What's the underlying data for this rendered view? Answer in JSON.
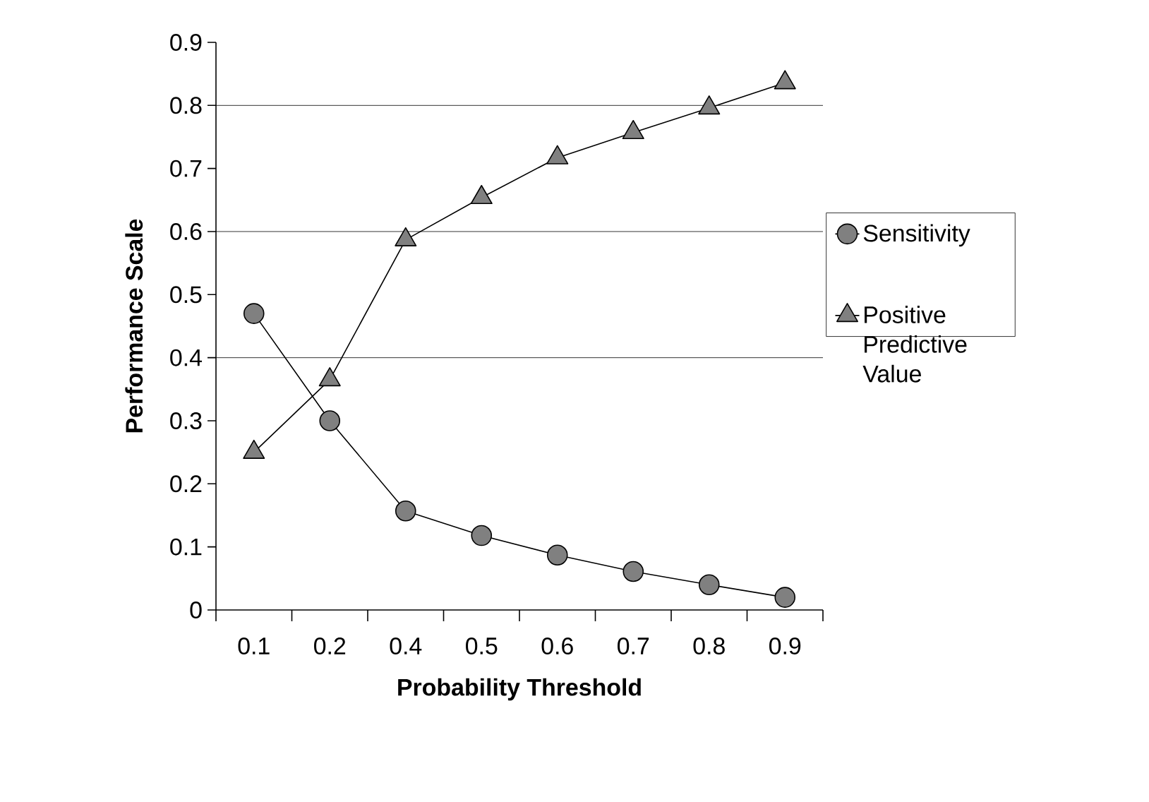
{
  "chart_data": {
    "type": "line",
    "xlabel": "Probability Threshold",
    "ylabel": "Performance Scale",
    "categories": [
      "0.1",
      "0.2",
      "0.4",
      "0.5",
      "0.6",
      "0.7",
      "0.8",
      "0.9"
    ],
    "series": [
      {
        "name": "Sensitivity",
        "color": "#808080",
        "marker": "circle",
        "values": [
          0.47,
          0.3,
          0.157,
          0.118,
          0.087,
          0.061,
          0.04,
          0.02
        ]
      },
      {
        "name": "Positive Predictive Value",
        "color": "#808080",
        "marker": "triangle",
        "values": [
          0.25,
          0.365,
          0.587,
          0.654,
          0.717,
          0.757,
          0.796,
          0.836
        ]
      }
    ],
    "ylim": [
      0,
      0.9
    ],
    "yticks": [
      0,
      0.1,
      0.2,
      0.3,
      0.4,
      0.5,
      0.6,
      0.7,
      0.8,
      0.9
    ],
    "ref_lines": [
      {
        "axis": "y",
        "value": 0.4,
        "color": "#000000"
      },
      {
        "axis": "y",
        "value": 0.6,
        "color": "#000000"
      },
      {
        "axis": "y",
        "value": 0.8,
        "color": "#000000"
      }
    ],
    "legend": "right",
    "line_style": "solid"
  }
}
